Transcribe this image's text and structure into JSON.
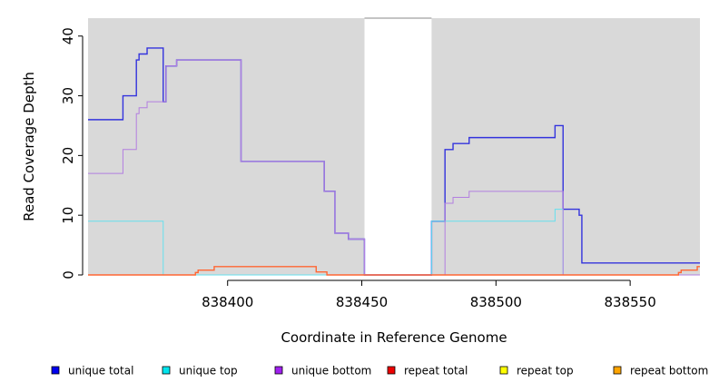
{
  "chart_data": {
    "type": "line",
    "xlabel": "Coordinate in Reference Genome",
    "ylabel": "Read Coverage Depth",
    "xlim": [
      838348,
      838576
    ],
    "ylim": [
      0,
      43
    ],
    "x_ticks": [
      838400,
      838450,
      838500,
      838550
    ],
    "y_ticks": [
      0,
      10,
      20,
      30,
      40
    ],
    "background_color": "#d9d9d9",
    "gap_region": [
      838451,
      838476
    ],
    "legend_position": "bottom",
    "legend": [
      {
        "name": "unique total",
        "color": "#0000ee"
      },
      {
        "name": "unique top",
        "color": "#00e5ee"
      },
      {
        "name": "unique bottom",
        "color": "#a020f0"
      },
      {
        "name": "repeat total",
        "color": "#ee0000"
      },
      {
        "name": "repeat top",
        "color": "#ffff00"
      },
      {
        "name": "repeat bottom",
        "color": "#ffa500"
      }
    ],
    "series": [
      {
        "name": "unique total",
        "color": "#3333dd",
        "width": 1.4,
        "points": [
          [
            838348,
            26
          ],
          [
            838361,
            26
          ],
          [
            838361,
            30
          ],
          [
            838366,
            30
          ],
          [
            838366,
            36
          ],
          [
            838367,
            36
          ],
          [
            838367,
            37
          ],
          [
            838370,
            37
          ],
          [
            838370,
            38
          ],
          [
            838376,
            38
          ],
          [
            838376,
            29
          ],
          [
            838377,
            29
          ],
          [
            838377,
            35
          ],
          [
            838381,
            35
          ],
          [
            838381,
            36
          ],
          [
            838405,
            36
          ],
          [
            838405,
            19
          ],
          [
            838436,
            19
          ],
          [
            838436,
            14
          ],
          [
            838440,
            14
          ],
          [
            838440,
            7
          ],
          [
            838445,
            7
          ],
          [
            838445,
            6
          ],
          [
            838451,
            6
          ],
          [
            838451,
            0
          ],
          [
            838476,
            0
          ],
          [
            838476,
            9
          ],
          [
            838481,
            9
          ],
          [
            838481,
            21
          ],
          [
            838484,
            21
          ],
          [
            838484,
            22
          ],
          [
            838490,
            22
          ],
          [
            838490,
            23
          ],
          [
            838522,
            23
          ],
          [
            838522,
            25
          ],
          [
            838525,
            25
          ],
          [
            838525,
            11
          ],
          [
            838531,
            11
          ],
          [
            838531,
            10
          ],
          [
            838532,
            10
          ],
          [
            838532,
            2
          ],
          [
            838576,
            2
          ]
        ]
      },
      {
        "name": "unique top",
        "color": "#66e0ee",
        "width": 1,
        "points": [
          [
            838348,
            9
          ],
          [
            838376,
            9
          ],
          [
            838376,
            0
          ],
          [
            838451,
            0
          ],
          [
            838451,
            0
          ],
          [
            838476,
            0
          ],
          [
            838476,
            9
          ],
          [
            838522,
            9
          ],
          [
            838522,
            11
          ],
          [
            838525,
            11
          ],
          [
            838525,
            0
          ],
          [
            838576,
            0
          ]
        ]
      },
      {
        "name": "unique bottom",
        "color": "#b37fe0",
        "width": 1,
        "points": [
          [
            838348,
            17
          ],
          [
            838361,
            17
          ],
          [
            838361,
            21
          ],
          [
            838366,
            21
          ],
          [
            838366,
            27
          ],
          [
            838367,
            27
          ],
          [
            838367,
            28
          ],
          [
            838370,
            28
          ],
          [
            838370,
            29
          ],
          [
            838376,
            29
          ],
          [
            838376,
            29
          ],
          [
            838377,
            29
          ],
          [
            838377,
            35
          ],
          [
            838381,
            35
          ],
          [
            838381,
            36
          ],
          [
            838405,
            36
          ],
          [
            838405,
            19
          ],
          [
            838436,
            19
          ],
          [
            838436,
            14
          ],
          [
            838440,
            14
          ],
          [
            838440,
            7
          ],
          [
            838445,
            7
          ],
          [
            838445,
            6
          ],
          [
            838451,
            6
          ],
          [
            838451,
            0
          ],
          [
            838481,
            0
          ],
          [
            838481,
            12
          ],
          [
            838484,
            12
          ],
          [
            838484,
            13
          ],
          [
            838490,
            13
          ],
          [
            838490,
            14
          ],
          [
            838525,
            14
          ],
          [
            838525,
            0
          ],
          [
            838576,
            0
          ]
        ]
      },
      {
        "name": "repeat total",
        "color": "#ff6633",
        "width": 1.4,
        "points": [
          [
            838348,
            0
          ],
          [
            838388,
            0
          ],
          [
            838388,
            0.4
          ],
          [
            838389,
            0.4
          ],
          [
            838389,
            0.8
          ],
          [
            838395,
            0.8
          ],
          [
            838395,
            1.4
          ],
          [
            838433,
            1.4
          ],
          [
            838433,
            0.5
          ],
          [
            838437,
            0.5
          ],
          [
            838437,
            0
          ],
          [
            838568,
            0
          ],
          [
            838568,
            0.4
          ],
          [
            838569,
            0.4
          ],
          [
            838569,
            0.8
          ],
          [
            838575,
            0.8
          ],
          [
            838575,
            1.4
          ],
          [
            838576,
            1.4
          ]
        ]
      }
    ]
  }
}
